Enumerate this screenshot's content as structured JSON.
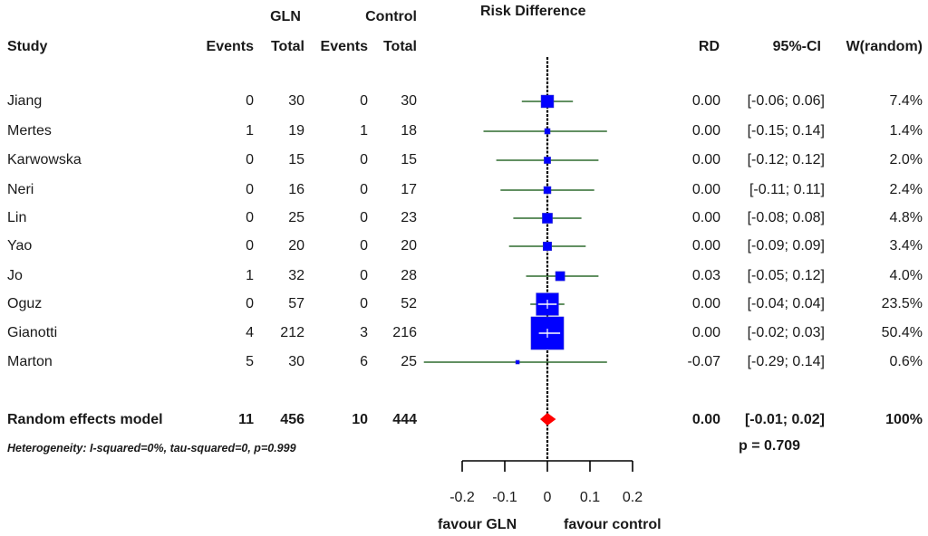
{
  "chart_data": {
    "type": "forest",
    "title": "Risk Difference",
    "headers": {
      "group1": "GLN",
      "group2": "Control",
      "study": "Study",
      "events": "Events",
      "total": "Total",
      "rd": "RD",
      "ci": "95%-CI",
      "weight": "W(random)"
    },
    "studies": [
      {
        "name": "Jiang",
        "e1": "0",
        "n1": "30",
        "e2": "0",
        "n2": "30",
        "rd": 0.0,
        "lo": -0.06,
        "hi": 0.06,
        "rd_label": "0.00",
        "ci_label": "[-0.06; 0.06]",
        "w": 7.4,
        "w_label": "7.4%"
      },
      {
        "name": "Mertes",
        "e1": "1",
        "n1": "19",
        "e2": "1",
        "n2": "18",
        "rd": 0.0,
        "lo": -0.15,
        "hi": 0.14,
        "rd_label": "0.00",
        "ci_label": "[-0.15; 0.14]",
        "w": 1.4,
        "w_label": "1.4%"
      },
      {
        "name": "Karwowska",
        "e1": "0",
        "n1": "15",
        "e2": "0",
        "n2": "15",
        "rd": 0.0,
        "lo": -0.12,
        "hi": 0.12,
        "rd_label": "0.00",
        "ci_label": "[-0.12; 0.12]",
        "w": 2.0,
        "w_label": "2.0%"
      },
      {
        "name": "Neri",
        "e1": "0",
        "n1": "16",
        "e2": "0",
        "n2": "17",
        "rd": 0.0,
        "lo": -0.11,
        "hi": 0.11,
        "rd_label": "0.00",
        "ci_label": "[-0.11; 0.11]",
        "w": 2.4,
        "w_label": "2.4%"
      },
      {
        "name": "Lin",
        "e1": "0",
        "n1": "25",
        "e2": "0",
        "n2": "23",
        "rd": 0.0,
        "lo": -0.08,
        "hi": 0.08,
        "rd_label": "0.00",
        "ci_label": "[-0.08; 0.08]",
        "w": 4.8,
        "w_label": "4.8%"
      },
      {
        "name": "Yao",
        "e1": "0",
        "n1": "20",
        "e2": "0",
        "n2": "20",
        "rd": 0.0,
        "lo": -0.09,
        "hi": 0.09,
        "rd_label": "0.00",
        "ci_label": "[-0.09; 0.09]",
        "w": 3.4,
        "w_label": "3.4%"
      },
      {
        "name": "Jo",
        "e1": "1",
        "n1": "32",
        "e2": "0",
        "n2": "28",
        "rd": 0.03,
        "lo": -0.05,
        "hi": 0.12,
        "rd_label": "0.03",
        "ci_label": "[-0.05; 0.12]",
        "w": 4.0,
        "w_label": "4.0%"
      },
      {
        "name": "Oguz",
        "e1": "0",
        "n1": "57",
        "e2": "0",
        "n2": "52",
        "rd": 0.0,
        "lo": -0.04,
        "hi": 0.04,
        "rd_label": "0.00",
        "ci_label": "[-0.04; 0.04]",
        "w": 23.5,
        "w_label": "23.5%"
      },
      {
        "name": "Gianotti",
        "e1": "4",
        "n1": "212",
        "e2": "3",
        "n2": "216",
        "rd": 0.0,
        "lo": -0.02,
        "hi": 0.03,
        "rd_label": "0.00",
        "ci_label": "[-0.02; 0.03]",
        "w": 50.4,
        "w_label": "50.4%"
      },
      {
        "name": "Marton",
        "e1": "5",
        "n1": "30",
        "e2": "6",
        "n2": "25",
        "rd": -0.07,
        "lo": -0.29,
        "hi": 0.14,
        "rd_label": "-0.07",
        "ci_label": "[-0.29; 0.14]",
        "w": 0.6,
        "w_label": "0.6%"
      }
    ],
    "pooled": {
      "name": "Random effects model",
      "e1": "11",
      "n1": "456",
      "e2": "10",
      "n2": "444",
      "rd": 0.0,
      "lo": -0.01,
      "hi": 0.02,
      "rd_label": "0.00",
      "ci_label": "[-0.01; 0.02]",
      "w_label": "100%",
      "p_label": "p = 0.709"
    },
    "heterogeneity": "Heterogeneity: I-squared=0%, tau-squared=0, p=0.999",
    "xaxis": {
      "range": [
        -0.2,
        0.2
      ],
      "ticks": [
        -0.2,
        -0.1,
        0,
        0.1,
        0.2
      ],
      "tick_labels": [
        "-0.2",
        "-0.1",
        "0",
        "0.1",
        "0.2"
      ],
      "left_label": "favour GLN",
      "right_label": "favour control"
    },
    "colors": {
      "square": "#0000ff",
      "ci_line": "#2e6b2e",
      "diamond": "#ff0000",
      "axis": "#000000"
    }
  }
}
